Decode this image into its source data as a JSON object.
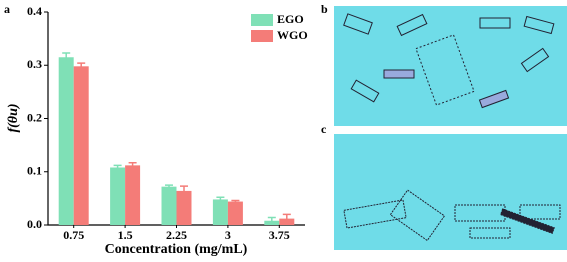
{
  "chart_data": {
    "type": "bar",
    "panel_labels": [
      "a",
      "b",
      "c"
    ],
    "x_label": "Concentration (mg/mL)",
    "y_label": "f(θu)",
    "categories": [
      "0.75",
      "1.5",
      "2.25",
      "3",
      "3.75"
    ],
    "series": [
      {
        "name": "EGO",
        "color": "#7fe0b6",
        "values": [
          0.315,
          0.108,
          0.072,
          0.048,
          0.008
        ],
        "errors": [
          0.008,
          0.004,
          0.003,
          0.004,
          0.006
        ]
      },
      {
        "name": "WGO",
        "color": "#f47c78",
        "values": [
          0.298,
          0.112,
          0.064,
          0.044,
          0.012
        ],
        "errors": [
          0.006,
          0.005,
          0.009,
          0.002,
          0.008
        ]
      }
    ],
    "ylim": [
      0,
      0.4
    ],
    "yticks": [
      {
        "value": 0,
        "label": "0.0"
      },
      0.1,
      0.2,
      0.3,
      0.4
    ],
    "legend": "upper right"
  }
}
